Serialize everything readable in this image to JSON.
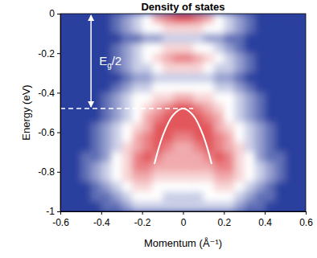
{
  "chart_data": {
    "type": "heatmap",
    "title": "Density of states",
    "x_label": "Momentum (Å⁻¹)",
    "y_label": "Energy (eV)",
    "xlim": [
      -0.6,
      0.6
    ],
    "ylim": [
      -1,
      0
    ],
    "xticks": [
      -0.6,
      -0.4,
      -0.2,
      0,
      0.2,
      0.4,
      0.6
    ],
    "yticks": [
      0,
      -0.2,
      -0.4,
      -0.6,
      -0.8,
      -1
    ],
    "x": [
      -0.575,
      -0.525,
      -0.475,
      -0.425,
      -0.375,
      -0.325,
      -0.275,
      -0.225,
      -0.175,
      -0.125,
      -0.075,
      -0.025,
      0.025,
      0.075,
      0.125,
      0.175,
      0.225,
      0.275,
      0.325,
      0.375,
      0.425,
      0.475,
      0.525,
      0.575
    ],
    "y": [
      -0.025,
      -0.075,
      -0.125,
      -0.175,
      -0.225,
      -0.275,
      -0.325,
      -0.375,
      -0.425,
      -0.475,
      -0.525,
      -0.575,
      -0.625,
      -0.675,
      -0.725,
      -0.775,
      -0.825,
      -0.875,
      -0.925,
      -0.975
    ],
    "z": [
      [
        0,
        0,
        0,
        0,
        0,
        1,
        2,
        3,
        4,
        6,
        7,
        8,
        8,
        7,
        6,
        4,
        3,
        2,
        1,
        0,
        0,
        0,
        0,
        0
      ],
      [
        0,
        0,
        0,
        0,
        0,
        1,
        2,
        3,
        4,
        4,
        5,
        5,
        5,
        5,
        4,
        4,
        3,
        2,
        1,
        0,
        0,
        0,
        0,
        0
      ],
      [
        0,
        0,
        0,
        0,
        0,
        0,
        1,
        1,
        2,
        2,
        3,
        3,
        3,
        3,
        2,
        2,
        1,
        1,
        0,
        0,
        0,
        0,
        0,
        0
      ],
      [
        0,
        0,
        0,
        0,
        0,
        1,
        2,
        3,
        4,
        4,
        5,
        5,
        5,
        4,
        4,
        3,
        2,
        1,
        0,
        0,
        0,
        0,
        0,
        0
      ],
      [
        0,
        0,
        0,
        0,
        0,
        1,
        2,
        3,
        4,
        5,
        6,
        7,
        7,
        6,
        5,
        4,
        3,
        2,
        1,
        0,
        0,
        0,
        0,
        0
      ],
      [
        0,
        0,
        0,
        0,
        0,
        1,
        2,
        3,
        3,
        4,
        5,
        5,
        5,
        5,
        4,
        3,
        3,
        2,
        1,
        0,
        0,
        0,
        0,
        0
      ],
      [
        0,
        0,
        0,
        0,
        0,
        0,
        1,
        2,
        2,
        3,
        3,
        3,
        3,
        3,
        3,
        2,
        2,
        1,
        0,
        0,
        0,
        0,
        0,
        0
      ],
      [
        0,
        0,
        0,
        0,
        0,
        1,
        2,
        3,
        3,
        4,
        4,
        4,
        4,
        4,
        4,
        3,
        3,
        2,
        1,
        0,
        0,
        0,
        0,
        0
      ],
      [
        0,
        0,
        0,
        0,
        1,
        2,
        3,
        4,
        4,
        5,
        5,
        6,
        6,
        5,
        5,
        4,
        4,
        3,
        2,
        1,
        0,
        0,
        0,
        0
      ],
      [
        0,
        0,
        0,
        0,
        1,
        2,
        3,
        4,
        5,
        6,
        7,
        8,
        8,
        7,
        6,
        5,
        4,
        3,
        2,
        1,
        0,
        0,
        0,
        0
      ],
      [
        0,
        0,
        0,
        0,
        1,
        2,
        3,
        4,
        6,
        7,
        8,
        8,
        8,
        8,
        7,
        6,
        4,
        3,
        2,
        1,
        0,
        0,
        0,
        0
      ],
      [
        0,
        0,
        0,
        1,
        2,
        3,
        4,
        5,
        6,
        8,
        8,
        8,
        8,
        8,
        8,
        6,
        5,
        4,
        3,
        2,
        1,
        0,
        0,
        0
      ],
      [
        0,
        0,
        0,
        1,
        2,
        3,
        4,
        6,
        7,
        8,
        8,
        7,
        7,
        8,
        8,
        7,
        6,
        4,
        3,
        2,
        1,
        0,
        0,
        0
      ],
      [
        0,
        0,
        0,
        1,
        2,
        3,
        5,
        6,
        7,
        8,
        7,
        6,
        6,
        7,
        8,
        7,
        6,
        5,
        3,
        2,
        1,
        0,
        0,
        0
      ],
      [
        0,
        0,
        1,
        1,
        2,
        4,
        5,
        7,
        8,
        7,
        6,
        6,
        6,
        6,
        7,
        8,
        7,
        5,
        4,
        2,
        1,
        1,
        0,
        0
      ],
      [
        0,
        0,
        1,
        2,
        3,
        4,
        5,
        7,
        7,
        6,
        6,
        6,
        6,
        6,
        6,
        7,
        7,
        5,
        4,
        3,
        2,
        1,
        0,
        0
      ],
      [
        0,
        0,
        1,
        2,
        3,
        4,
        5,
        6,
        6,
        5,
        5,
        5,
        5,
        5,
        5,
        6,
        6,
        5,
        4,
        3,
        2,
        1,
        0,
        0
      ],
      [
        0,
        0,
        0,
        1,
        2,
        3,
        4,
        5,
        5,
        4,
        4,
        4,
        4,
        4,
        4,
        5,
        5,
        4,
        3,
        2,
        1,
        0,
        0,
        0
      ],
      [
        0,
        0,
        0,
        1,
        1,
        2,
        3,
        4,
        4,
        4,
        3,
        3,
        3,
        3,
        4,
        4,
        4,
        3,
        2,
        1,
        1,
        0,
        0,
        0
      ],
      [
        0,
        0,
        0,
        0,
        1,
        1,
        2,
        3,
        3,
        3,
        3,
        3,
        3,
        3,
        3,
        3,
        3,
        2,
        1,
        1,
        0,
        0,
        0,
        0
      ]
    ],
    "curve": {
      "x": [
        -0.14,
        -0.1,
        -0.05,
        0,
        0.05,
        0.1,
        0.14
      ],
      "y": [
        -0.76,
        -0.62,
        -0.515,
        -0.48,
        -0.515,
        -0.62,
        -0.76
      ]
    },
    "dashed_line": {
      "y": -0.48,
      "x": [
        -0.6,
        0.05
      ]
    },
    "arrow": {
      "x": -0.45,
      "y": [
        0,
        -0.48
      ]
    },
    "annotation": "Eg/2"
  }
}
